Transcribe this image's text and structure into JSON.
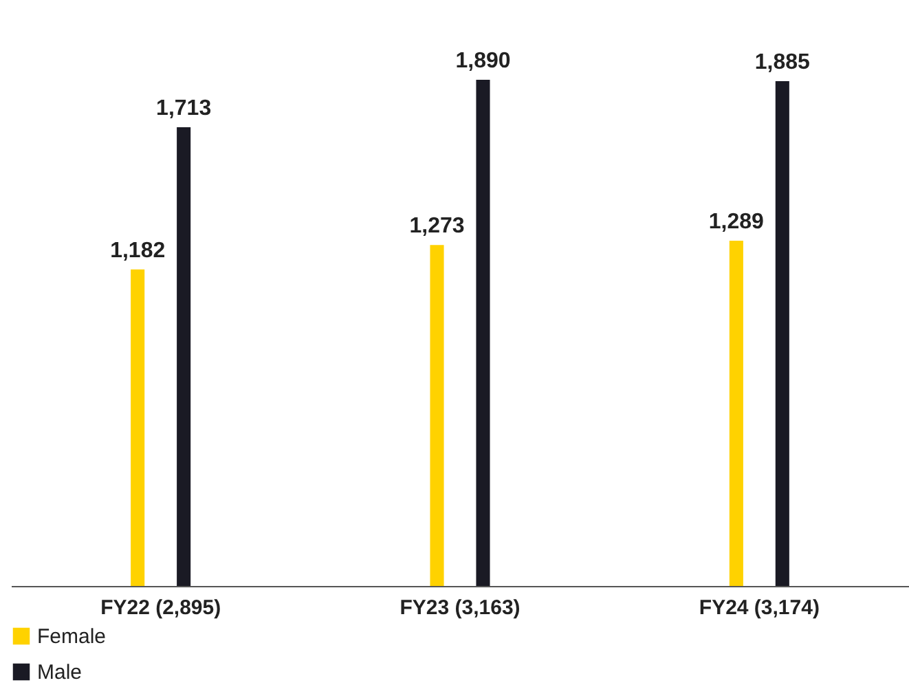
{
  "chart_data": {
    "type": "bar",
    "categories": [
      "FY22 (2,895)",
      "FY23 (3,163)",
      "FY24 (3,174)"
    ],
    "series": [
      {
        "name": "Female",
        "color": "#ffd200",
        "values": [
          1182,
          1273,
          1289
        ],
        "value_labels": [
          "1,182",
          "1,273",
          "1,289"
        ]
      },
      {
        "name": "Male",
        "color": "#1a1a24",
        "values": [
          1713,
          1890,
          1885
        ],
        "value_labels": [
          "1,713",
          "1,890",
          "1,885"
        ]
      }
    ],
    "legend": "bottom left",
    "grid": false
  }
}
